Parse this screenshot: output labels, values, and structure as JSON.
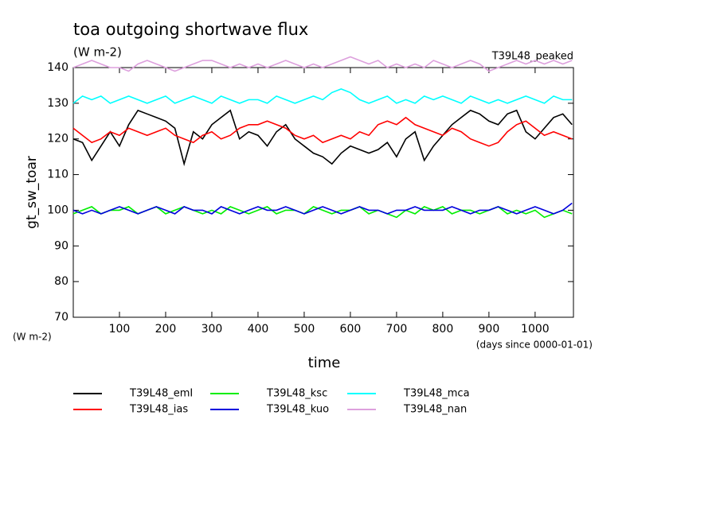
{
  "chart_data": {
    "type": "line",
    "title": "toa outgoing shortwave flux",
    "subtitle": "(W m-2)",
    "annotation": "T39L48_peaked",
    "y_label": "gt_sw_toar",
    "y_unit": "(W m-2)",
    "x_label": "time",
    "x_unit": "(days since 0000-01-01)",
    "x": [
      0,
      20,
      40,
      60,
      80,
      100,
      120,
      140,
      160,
      180,
      200,
      220,
      240,
      260,
      280,
      300,
      320,
      340,
      360,
      380,
      400,
      420,
      440,
      460,
      480,
      500,
      520,
      540,
      560,
      580,
      600,
      620,
      640,
      660,
      680,
      700,
      720,
      740,
      760,
      780,
      800,
      820,
      840,
      860,
      880,
      900,
      920,
      940,
      960,
      980,
      1000,
      1020,
      1040,
      1060,
      1080
    ],
    "xlim": [
      0,
      1083
    ],
    "xticks": [
      100,
      200,
      300,
      400,
      500,
      600,
      700,
      800,
      900,
      1000
    ],
    "ylim": [
      70,
      140
    ],
    "yticks": [
      70,
      80,
      90,
      100,
      110,
      120,
      130,
      140
    ],
    "series": [
      {
        "name": "T39L48_emI",
        "color": "#000000",
        "values": [
          120,
          119,
          114,
          118,
          122,
          118,
          124,
          128,
          127,
          126,
          125,
          123,
          113,
          122,
          120,
          124,
          126,
          128,
          120,
          122,
          121,
          118,
          122,
          124,
          120,
          118,
          116,
          115,
          113,
          116,
          118,
          117,
          116,
          117,
          119,
          115,
          120,
          122,
          114,
          118,
          121,
          124,
          126,
          128,
          127,
          125,
          124,
          127,
          128,
          122,
          120,
          123,
          126,
          127,
          124
        ]
      },
      {
        "name": "T39L48_ias",
        "color": "#ff0000",
        "values": [
          123,
          121,
          119,
          120,
          122,
          121,
          123,
          122,
          121,
          122,
          123,
          121,
          120,
          119,
          121,
          122,
          120,
          121,
          123,
          124,
          124,
          125,
          124,
          123,
          121,
          120,
          121,
          119,
          120,
          121,
          120,
          122,
          121,
          124,
          125,
          124,
          126,
          124,
          123,
          122,
          121,
          123,
          122,
          120,
          119,
          118,
          119,
          122,
          124,
          125,
          123,
          121,
          122,
          121,
          120
        ]
      },
      {
        "name": "T39L48_ksc",
        "color": "#00ee00",
        "values": [
          99,
          100,
          101,
          99,
          100,
          100,
          101,
          99,
          100,
          101,
          99,
          100,
          101,
          100,
          99,
          100,
          99,
          101,
          100,
          99,
          100,
          101,
          99,
          100,
          100,
          99,
          101,
          100,
          99,
          100,
          100,
          101,
          99,
          100,
          99,
          98,
          100,
          99,
          101,
          100,
          101,
          99,
          100,
          100,
          99,
          100,
          101,
          99,
          100,
          99,
          100,
          98,
          99,
          100,
          99
        ]
      },
      {
        "name": "T39L48_kuo",
        "color": "#0000dd",
        "values": [
          100,
          99,
          100,
          99,
          100,
          101,
          100,
          99,
          100,
          101,
          100,
          99,
          101,
          100,
          100,
          99,
          101,
          100,
          99,
          100,
          101,
          100,
          100,
          101,
          100,
          99,
          100,
          101,
          100,
          99,
          100,
          101,
          100,
          100,
          99,
          100,
          100,
          101,
          100,
          100,
          100,
          101,
          100,
          99,
          100,
          100,
          101,
          100,
          99,
          100,
          101,
          100,
          99,
          100,
          102
        ]
      },
      {
        "name": "T39L48_mca",
        "color": "#00ffff",
        "values": [
          130,
          132,
          131,
          132,
          130,
          131,
          132,
          131,
          130,
          131,
          132,
          130,
          131,
          132,
          131,
          130,
          132,
          131,
          130,
          131,
          131,
          130,
          132,
          131,
          130,
          131,
          132,
          131,
          133,
          134,
          133,
          131,
          130,
          131,
          132,
          130,
          131,
          130,
          132,
          131,
          132,
          131,
          130,
          132,
          131,
          130,
          131,
          130,
          131,
          132,
          131,
          130,
          132,
          131,
          131
        ]
      },
      {
        "name": "T39L48_nan",
        "color": "#dda0dd",
        "values": [
          140,
          141,
          142,
          141,
          140,
          140,
          139,
          141,
          142,
          141,
          140,
          139,
          140,
          141,
          142,
          142,
          141,
          140,
          141,
          140,
          141,
          140,
          141,
          142,
          141,
          140,
          141,
          140,
          141,
          142,
          143,
          142,
          141,
          142,
          140,
          141,
          140,
          141,
          140,
          142,
          141,
          140,
          141,
          142,
          141,
          139,
          140,
          141,
          142,
          141,
          142,
          141,
          142,
          141,
          142
        ]
      }
    ]
  }
}
